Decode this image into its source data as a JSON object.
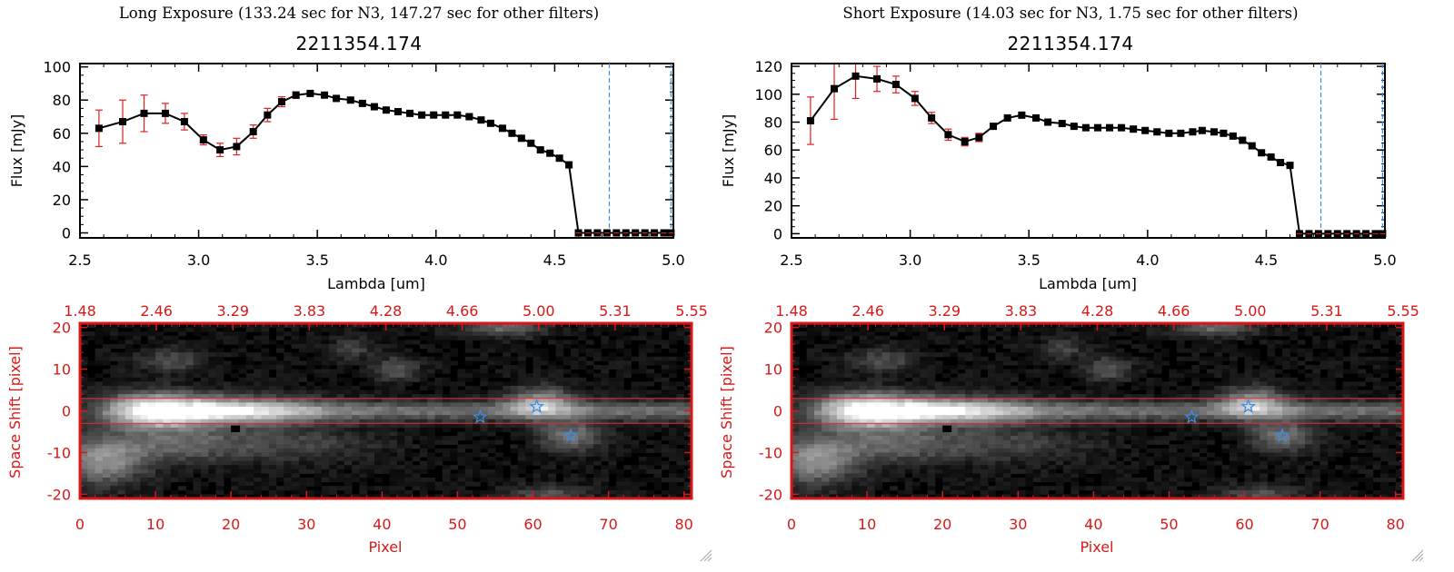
{
  "panels": [
    {
      "exposure_title": "Long Exposure (133.24 sec for N3, 147.27 sec for other filters)",
      "object_id": "2211354.174"
    },
    {
      "exposure_title": "Short Exposure (14.03 sec for N3, 1.75 sec for other filters)",
      "object_id": "2211354.174"
    }
  ],
  "colors": {
    "axis_red": "#d81818",
    "errorbar_red": "#e02020",
    "marker": "#000000",
    "vline_blue": "#3a8ee8",
    "aperture_red": "#e03030",
    "star_blue": "#3a8ee8"
  },
  "chart_data": [
    {
      "type": "line",
      "title": "2211354.174",
      "xlabel": "Lambda [um]",
      "ylabel": "Flux [mJy]",
      "xlim": [
        2.5,
        5.0
      ],
      "ylim": [
        -3,
        102
      ],
      "xticks": [
        "2.5",
        "3.0",
        "3.5",
        "4.0",
        "4.5",
        "5.0"
      ],
      "yticks": [
        "0",
        "20",
        "40",
        "60",
        "80",
        "100"
      ],
      "vlines": [
        4.73,
        4.99
      ],
      "x": [
        2.58,
        2.68,
        2.77,
        2.86,
        2.94,
        3.02,
        3.09,
        3.16,
        3.23,
        3.29,
        3.35,
        3.41,
        3.47,
        3.53,
        3.58,
        3.64,
        3.69,
        3.74,
        3.79,
        3.84,
        3.89,
        3.94,
        3.99,
        4.04,
        4.09,
        4.14,
        4.19,
        4.23,
        4.28,
        4.32,
        4.36,
        4.4,
        4.44,
        4.48,
        4.52,
        4.56,
        4.6,
        4.64,
        4.68,
        4.72,
        4.76,
        4.8,
        4.84,
        4.88,
        4.92,
        4.96,
        4.99
      ],
      "values": [
        63,
        67,
        72,
        72,
        67,
        56,
        50,
        52,
        61,
        71,
        79,
        83,
        84,
        83,
        81,
        80,
        78,
        76,
        74,
        73,
        72,
        71,
        71,
        71,
        71,
        70,
        68,
        66,
        63,
        60,
        57,
        54,
        50,
        48,
        45,
        41,
        0,
        0,
        0,
        0,
        0,
        0,
        0,
        0,
        0,
        0,
        0
      ],
      "errors": [
        11,
        13,
        11,
        6,
        5,
        3,
        4,
        5,
        4,
        4,
        3,
        2,
        1,
        1,
        1,
        1,
        1,
        1,
        1,
        1,
        1,
        1,
        1,
        1,
        1,
        1,
        1,
        1,
        1,
        1,
        1,
        1,
        1,
        1,
        1,
        1,
        0,
        0,
        0,
        0,
        0,
        0,
        0,
        0,
        0,
        0,
        0
      ]
    },
    {
      "type": "heatmap",
      "xlabel": "Pixel",
      "ylabel": "Space Shift [pixel]",
      "xlim": [
        0,
        81
      ],
      "ylim": [
        -21,
        21
      ],
      "xticks": [
        "0",
        "10",
        "20",
        "30",
        "40",
        "50",
        "60",
        "70",
        "80"
      ],
      "yticks": [
        "-20",
        "-10",
        "0",
        "10",
        "20"
      ],
      "top_axis_ticks": [
        "1.48",
        "2.46",
        "3.29",
        "3.83",
        "4.28",
        "4.66",
        "5.00",
        "5.31",
        "5.55"
      ],
      "aperture_lines": [
        3,
        -3
      ],
      "sources": [
        {
          "x": 10,
          "y": 0,
          "sx": 5,
          "sy": 2.8,
          "amp": 1.0
        },
        {
          "x": 22,
          "y": 0,
          "sx": 7,
          "sy": 2.5,
          "amp": 0.5
        },
        {
          "x": 3,
          "y": -12,
          "sx": 4,
          "sy": 4,
          "amp": 0.5
        },
        {
          "x": 13,
          "y": -8,
          "sx": 6,
          "sy": 3,
          "amp": 0.3
        },
        {
          "x": 12,
          "y": 12,
          "sx": 3,
          "sy": 2,
          "amp": 0.25
        },
        {
          "x": 61,
          "y": 2,
          "sx": 3,
          "sy": 2.5,
          "amp": 0.55
        },
        {
          "x": 65,
          "y": -6,
          "sx": 3,
          "sy": 2.5,
          "amp": 0.4
        },
        {
          "x": 42,
          "y": 10,
          "sx": 2,
          "sy": 2,
          "amp": 0.3
        },
        {
          "x": 56,
          "y": 20,
          "sx": 4,
          "sy": 1.5,
          "amp": 0.35
        },
        {
          "x": 28,
          "y": -8,
          "sx": 8,
          "sy": 3,
          "amp": 0.2
        },
        {
          "x": 36,
          "y": 15,
          "sx": 2,
          "sy": 2,
          "amp": 0.2
        },
        {
          "x": 62,
          "y": -20,
          "sx": 4,
          "sy": 1.5,
          "amp": 0.25
        }
      ],
      "stars": [
        {
          "x": 53,
          "y": -1.5
        },
        {
          "x": 60.5,
          "y": 1
        },
        {
          "x": 65,
          "y": -6
        }
      ]
    },
    {
      "type": "line",
      "title": "2211354.174",
      "xlabel": "Lambda [um]",
      "ylabel": "Flux [mJy]",
      "xlim": [
        2.5,
        5.0
      ],
      "ylim": [
        -3,
        122
      ],
      "xticks": [
        "2.5",
        "3.0",
        "3.5",
        "4.0",
        "4.5",
        "5.0"
      ],
      "yticks": [
        "0",
        "20",
        "40",
        "60",
        "80",
        "100",
        "120"
      ],
      "vlines": [
        4.73,
        4.99
      ],
      "x": [
        2.58,
        2.68,
        2.77,
        2.86,
        2.94,
        3.02,
        3.09,
        3.16,
        3.23,
        3.29,
        3.35,
        3.41,
        3.47,
        3.53,
        3.58,
        3.64,
        3.69,
        3.74,
        3.79,
        3.84,
        3.89,
        3.94,
        3.99,
        4.04,
        4.09,
        4.14,
        4.19,
        4.23,
        4.28,
        4.32,
        4.36,
        4.4,
        4.44,
        4.48,
        4.52,
        4.56,
        4.6,
        4.64,
        4.68,
        4.72,
        4.76,
        4.8,
        4.84,
        4.88,
        4.92,
        4.96,
        4.99
      ],
      "values": [
        81,
        104,
        113,
        111,
        107,
        97,
        83,
        71,
        66,
        69,
        77,
        83,
        85,
        83,
        80,
        79,
        77,
        76,
        76,
        76,
        76,
        75,
        74,
        73,
        72,
        72,
        73,
        74,
        73,
        72,
        70,
        67,
        63,
        58,
        55,
        51,
        49,
        0,
        0,
        0,
        0,
        0,
        0,
        0,
        0,
        0,
        0
      ],
      "errors": [
        17,
        22,
        16,
        9,
        6,
        5,
        4,
        4,
        3,
        3,
        2,
        1,
        1,
        1,
        1,
        1,
        1,
        1,
        1,
        1,
        1,
        1,
        1,
        1,
        1,
        1,
        1,
        1,
        1,
        1,
        1,
        1,
        1,
        1,
        1,
        1,
        1,
        0,
        0,
        0,
        0,
        0,
        0,
        0,
        0,
        0,
        0
      ]
    },
    {
      "type": "heatmap",
      "xlabel": "Pixel",
      "ylabel": "Space Shift [pixel]",
      "xlim": [
        0,
        81
      ],
      "ylim": [
        -21,
        21
      ],
      "xticks": [
        "0",
        "10",
        "20",
        "30",
        "40",
        "50",
        "60",
        "70",
        "80"
      ],
      "yticks": [
        "-20",
        "-10",
        "0",
        "10",
        "20"
      ],
      "top_axis_ticks": [
        "1.48",
        "2.46",
        "3.29",
        "3.83",
        "4.28",
        "4.66",
        "5.00",
        "5.31",
        "5.55"
      ],
      "aperture_lines": [
        3,
        -3
      ],
      "sources": [
        {
          "x": 10,
          "y": 0,
          "sx": 5,
          "sy": 2.8,
          "amp": 1.0
        },
        {
          "x": 22,
          "y": 0,
          "sx": 7,
          "sy": 2.5,
          "amp": 0.5
        },
        {
          "x": 3,
          "y": -12,
          "sx": 4,
          "sy": 4,
          "amp": 0.5
        },
        {
          "x": 13,
          "y": -8,
          "sx": 6,
          "sy": 3,
          "amp": 0.3
        },
        {
          "x": 12,
          "y": 12,
          "sx": 3,
          "sy": 2,
          "amp": 0.25
        },
        {
          "x": 61,
          "y": 2,
          "sx": 3,
          "sy": 2.5,
          "amp": 0.55
        },
        {
          "x": 65,
          "y": -6,
          "sx": 3,
          "sy": 2.5,
          "amp": 0.4
        },
        {
          "x": 42,
          "y": 10,
          "sx": 2,
          "sy": 2,
          "amp": 0.3
        },
        {
          "x": 56,
          "y": 20,
          "sx": 4,
          "sy": 1.5,
          "amp": 0.35
        },
        {
          "x": 28,
          "y": -8,
          "sx": 8,
          "sy": 3,
          "amp": 0.2
        },
        {
          "x": 36,
          "y": 15,
          "sx": 2,
          "sy": 2,
          "amp": 0.2
        },
        {
          "x": 62,
          "y": -20,
          "sx": 4,
          "sy": 1.5,
          "amp": 0.25
        }
      ],
      "stars": [
        {
          "x": 53,
          "y": -1.5
        },
        {
          "x": 60.5,
          "y": 1
        },
        {
          "x": 65,
          "y": -6
        }
      ]
    }
  ]
}
